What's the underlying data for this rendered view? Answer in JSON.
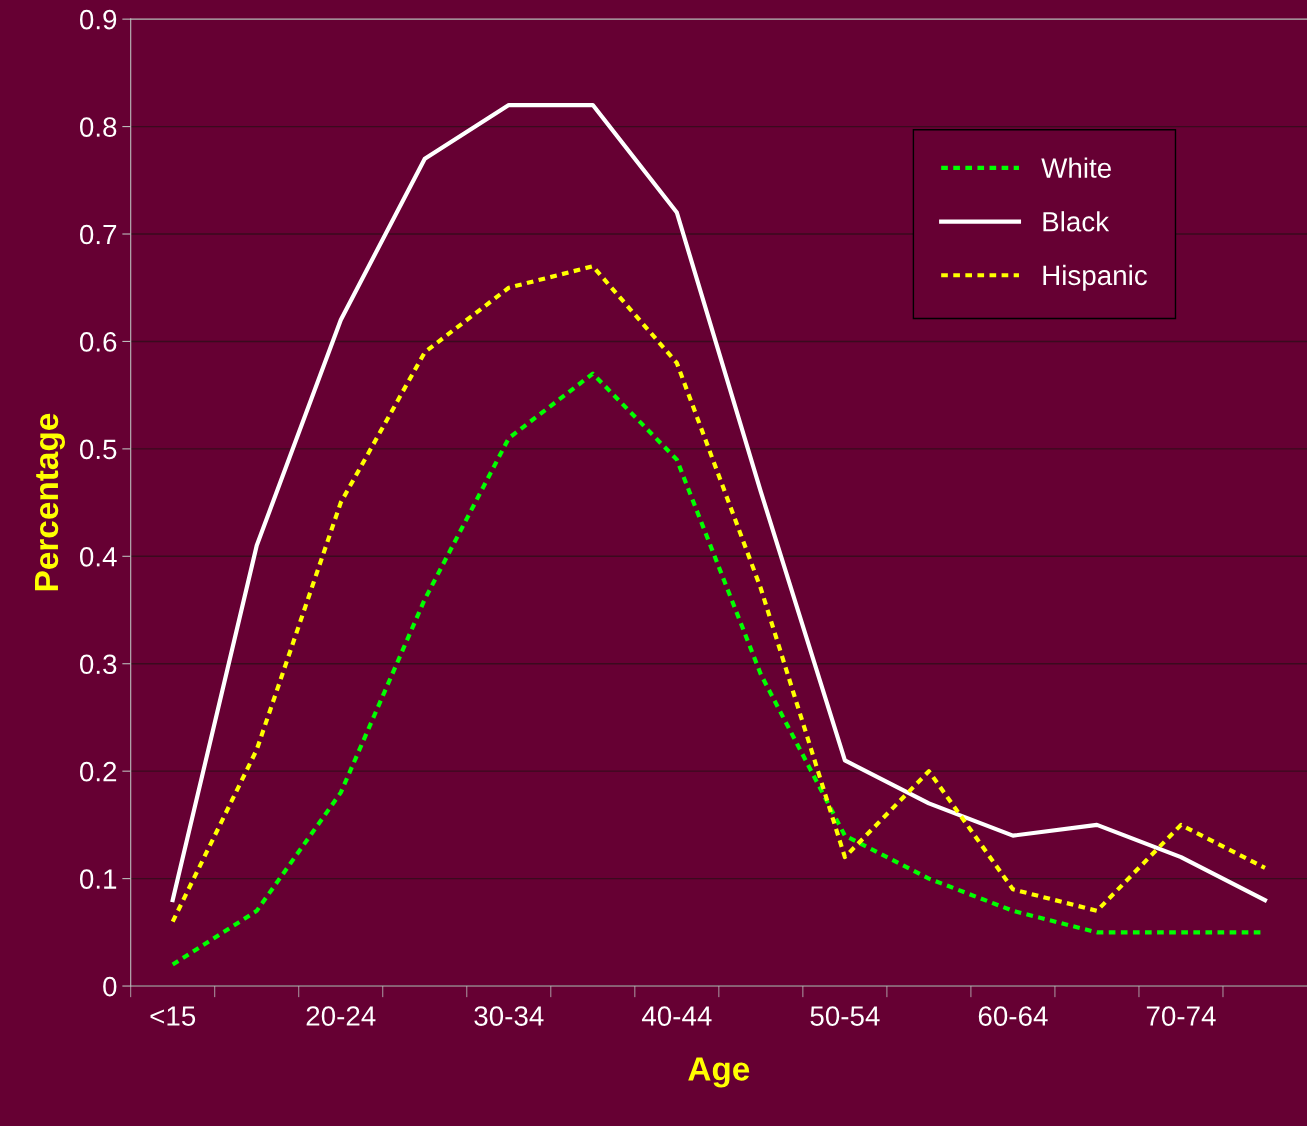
{
  "chart_data": {
    "type": "line",
    "xlabel": "Age",
    "ylabel": "Percentage",
    "categories": [
      "<15",
      null,
      "20-24",
      null,
      "30-34",
      null,
      "40-44",
      null,
      "50-54",
      null,
      "60-64",
      null,
      "70-74",
      null
    ],
    "series": [
      {
        "name": "White",
        "color": "#00ff00",
        "line_style": "dashed",
        "values": [
          0.02,
          0.07,
          0.18,
          0.36,
          0.51,
          0.57,
          0.49,
          0.29,
          0.14,
          0.1,
          0.07,
          0.05,
          0.05,
          0.05
        ]
      },
      {
        "name": "Black",
        "color": "#ffffff",
        "line_style": "solid",
        "values": [
          0.08,
          0.41,
          0.62,
          0.77,
          0.82,
          0.82,
          0.72,
          0.46,
          0.21,
          0.17,
          0.14,
          0.15,
          0.12,
          0.08
        ]
      },
      {
        "name": "Hispanic",
        "color": "#ffff00",
        "line_style": "dashed",
        "values": [
          0.06,
          0.22,
          0.45,
          0.59,
          0.65,
          0.67,
          0.58,
          0.37,
          0.12,
          0.2,
          0.09,
          0.07,
          0.15,
          0.11
        ]
      }
    ],
    "ylim": [
      0,
      0.9
    ],
    "yticks": [
      0,
      0.1,
      0.2,
      0.3,
      0.4,
      0.5,
      0.6,
      0.7,
      0.8,
      0.9
    ],
    "grid": "y",
    "legend": "top right",
    "marker": "none"
  }
}
